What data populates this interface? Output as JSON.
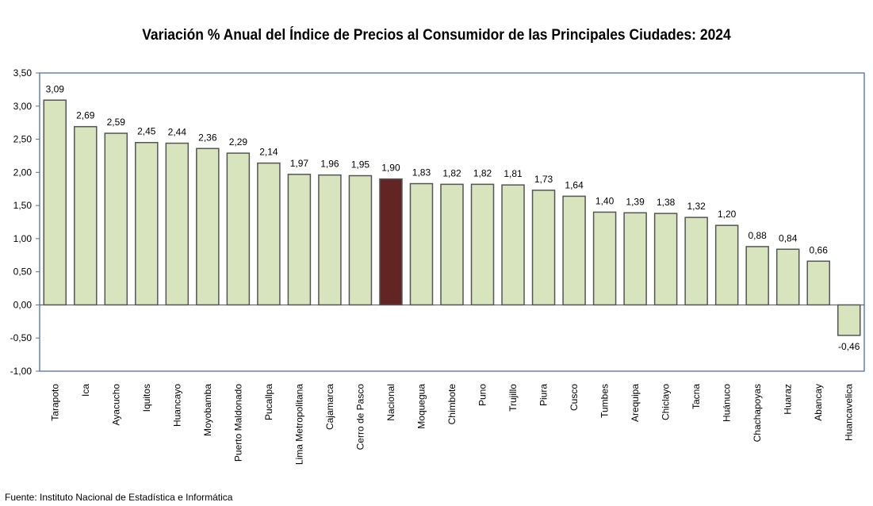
{
  "chart_data": {
    "type": "bar",
    "title": "Variación % Anual del Índice de Precios al Consumidor de las Principales Ciudades: 2024",
    "categories": [
      "Tarapoto",
      "Ica",
      "Ayacucho",
      "Iquitos",
      "Huancayo",
      "Moyobamba",
      "Puerto Maldonado",
      "Pucallpa",
      "Lima Metropolitana",
      "Cajamarca",
      "Cerro de Pasco",
      "Nacional",
      "Moquegua",
      "Chimbote",
      "Puno",
      "Trujillo",
      "Piura",
      "Cusco",
      "Tumbes",
      "Arequipa",
      "Chiclayo",
      "Tacna",
      "Huánuco",
      "Chachapoyas",
      "Huaraz",
      "Abancay",
      "Huancavelica"
    ],
    "values": [
      3.09,
      2.69,
      2.59,
      2.45,
      2.44,
      2.36,
      2.29,
      2.14,
      1.97,
      1.96,
      1.95,
      1.9,
      1.83,
      1.82,
      1.82,
      1.81,
      1.73,
      1.64,
      1.4,
      1.39,
      1.38,
      1.32,
      1.2,
      0.88,
      0.84,
      0.66,
      -0.46
    ],
    "data_labels": [
      "3,09",
      "2,69",
      "2,59",
      "2,45",
      "2,44",
      "2,36",
      "2,29",
      "2,14",
      "1,97",
      "1,96",
      "1,95",
      "1,90",
      "1,83",
      "1,82",
      "1,82",
      "1,81",
      "1,73",
      "1,64",
      "1,40",
      "1,39",
      "1,38",
      "1,32",
      "1,20",
      "0,88",
      "0,84",
      "0,66",
      "-0,46"
    ],
    "ylim": [
      -1,
      3.5
    ],
    "yticks": [
      3.5,
      3,
      2.5,
      2,
      1.5,
      1,
      0.5,
      0,
      -0.5,
      -1
    ],
    "ytick_labels": [
      "3,50",
      "3,00",
      "2,50",
      "2,00",
      "1,50",
      "1,00",
      "0,50",
      "0,00",
      "-0,50",
      "-1,00"
    ],
    "xlabel": "",
    "ylabel": "",
    "grid": false,
    "colors": {
      "bar": "#d7e4bd",
      "highlight": "#632523",
      "highlight_category": "Nacional",
      "frame": "#4f6db0"
    }
  },
  "source": "Fuente: Instituto  Nacional de Estadística  e Informática"
}
